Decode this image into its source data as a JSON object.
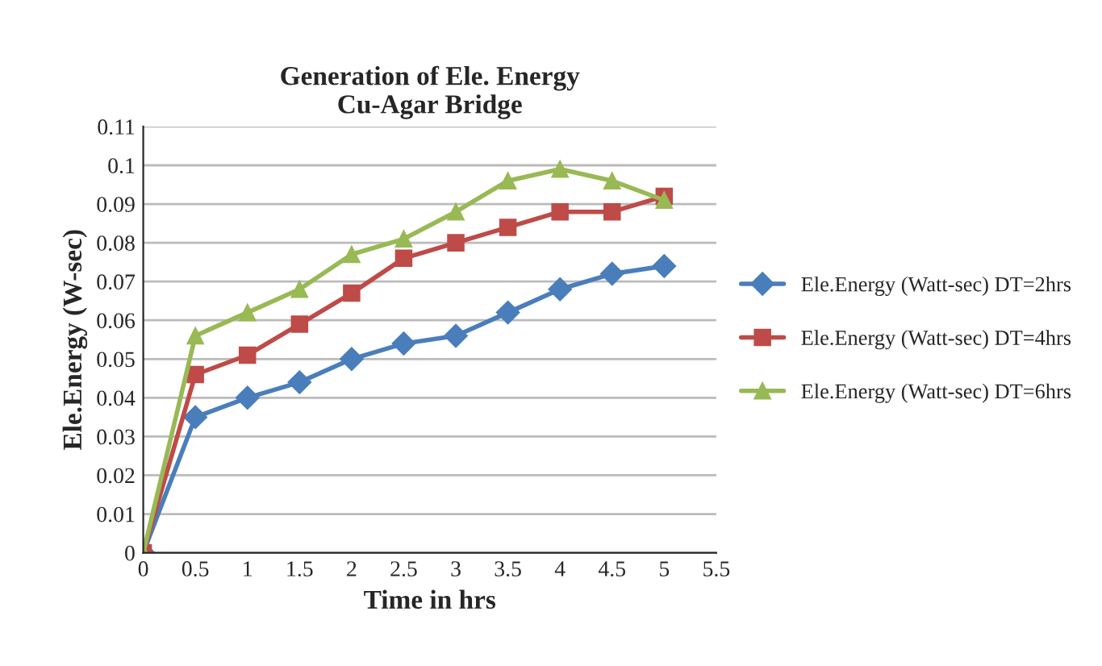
{
  "chart_data": {
    "type": "line",
    "title": "Generation of Ele. Energy\nCu-Agar Bridge",
    "xlabel": "Time in hrs",
    "ylabel": "Ele.Energy (W-sec)",
    "x": [
      0,
      0.5,
      1,
      1.5,
      2,
      2.5,
      3,
      3.5,
      4,
      4.5,
      5
    ],
    "series": [
      {
        "name": "Ele.Energy (Watt-sec) DT=2hrs",
        "color": "#4a7ebb",
        "marker": "diamond",
        "values": [
          0,
          0.035,
          0.04,
          0.044,
          0.05,
          0.054,
          0.056,
          0.062,
          0.068,
          0.072,
          0.074
        ]
      },
      {
        "name": "Ele.Energy (Watt-sec) DT=4hrs",
        "color": "#be4b48",
        "marker": "square",
        "values": [
          0,
          0.046,
          0.051,
          0.059,
          0.067,
          0.076,
          0.08,
          0.084,
          0.088,
          0.088,
          0.092
        ]
      },
      {
        "name": "Ele.Energy (Watt-sec) DT=6hrs",
        "color": "#98b954",
        "marker": "triangle",
        "values": [
          0,
          0.056,
          0.062,
          0.068,
          0.077,
          0.081,
          0.088,
          0.096,
          0.099,
          0.096,
          0.091
        ]
      }
    ],
    "xlim": [
      0,
      5.5
    ],
    "xticks": [
      0,
      0.5,
      1,
      1.5,
      2,
      2.5,
      3,
      3.5,
      4,
      4.5,
      5,
      5.5
    ],
    "ylim": [
      0,
      0.11
    ],
    "yticks": [
      0,
      0.01,
      0.02,
      0.03,
      0.04,
      0.05,
      0.06,
      0.07,
      0.08,
      0.09,
      0.1,
      0.11
    ],
    "grid": "y",
    "legend": "right",
    "line_style": "solid"
  }
}
